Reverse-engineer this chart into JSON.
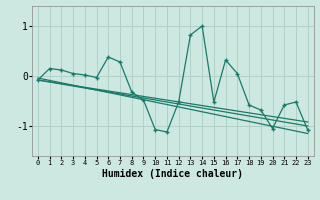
{
  "title": "",
  "xlabel": "Humidex (Indice chaleur)",
  "xlim": [
    -0.5,
    23.5
  ],
  "ylim": [
    -1.6,
    1.4
  ],
  "yticks": [
    -1,
    0,
    1
  ],
  "xticks": [
    0,
    1,
    2,
    3,
    4,
    5,
    6,
    7,
    8,
    9,
    10,
    11,
    12,
    13,
    14,
    15,
    16,
    17,
    18,
    19,
    20,
    21,
    22,
    23
  ],
  "bg_color": "#cce8e0",
  "grid_color": "#b0d0c8",
  "line_color": "#1a7a6a",
  "signal_x": [
    0,
    1,
    2,
    3,
    4,
    5,
    6,
    7,
    8,
    9,
    10,
    11,
    12,
    13,
    14,
    15,
    16,
    17,
    18,
    19,
    20,
    21,
    22,
    23
  ],
  "signal_y": [
    -0.08,
    0.15,
    0.12,
    0.05,
    0.02,
    -0.03,
    0.38,
    0.28,
    -0.32,
    -0.48,
    -1.07,
    -1.12,
    -0.52,
    0.82,
    1.0,
    -0.52,
    0.32,
    0.05,
    -0.58,
    -0.68,
    -1.05,
    -0.58,
    -0.52,
    -1.08
  ],
  "trend1_x": [
    0,
    23
  ],
  "trend1_y": [
    -0.08,
    -0.92
  ],
  "trend2_x": [
    0,
    23
  ],
  "trend2_y": [
    -0.08,
    -1.0
  ],
  "trend3_x": [
    0,
    23
  ],
  "trend3_y": [
    -0.04,
    -1.15
  ]
}
